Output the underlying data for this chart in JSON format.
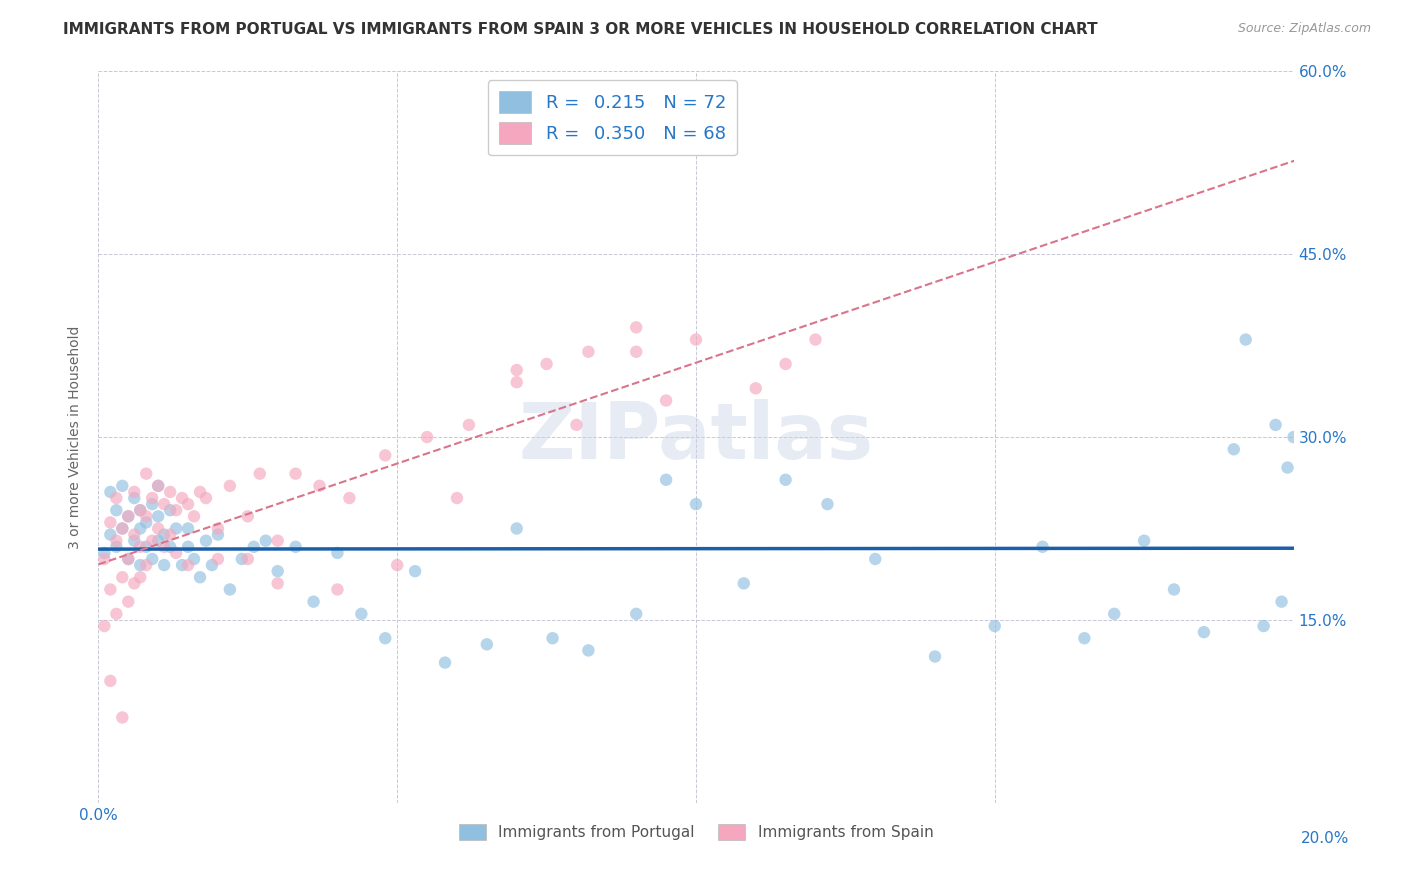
{
  "title": "IMMIGRANTS FROM PORTUGAL VS IMMIGRANTS FROM SPAIN 3 OR MORE VEHICLES IN HOUSEHOLD CORRELATION CHART",
  "source": "Source: ZipAtlas.com",
  "ylabel": "3 or more Vehicles in Household",
  "legend_portugal": "Immigrants from Portugal",
  "legend_spain": "Immigrants from Spain",
  "r_portugal": 0.215,
  "n_portugal": 72,
  "r_spain": 0.35,
  "n_spain": 68,
  "color_portugal": "#90bfdf",
  "color_spain": "#f4a7be",
  "trendline_portugal_color": "#1a5fa8",
  "trendline_spain_color": "#d9748a",
  "xlim": [
    0.0,
    0.2
  ],
  "ylim": [
    0.0,
    0.6
  ],
  "xticks": [
    0.0,
    0.05,
    0.1,
    0.15,
    0.2
  ],
  "yticks": [
    0.0,
    0.15,
    0.3,
    0.45,
    0.6
  ],
  "yticklabels_right": [
    "",
    "15.0%",
    "30.0%",
    "45.0%",
    "60.0%"
  ],
  "portugal_x": [
    0.001,
    0.002,
    0.002,
    0.003,
    0.003,
    0.004,
    0.004,
    0.005,
    0.005,
    0.006,
    0.006,
    0.007,
    0.007,
    0.007,
    0.008,
    0.008,
    0.009,
    0.009,
    0.01,
    0.01,
    0.01,
    0.011,
    0.011,
    0.012,
    0.012,
    0.013,
    0.014,
    0.015,
    0.015,
    0.016,
    0.017,
    0.018,
    0.019,
    0.02,
    0.022,
    0.024,
    0.026,
    0.028,
    0.03,
    0.033,
    0.036,
    0.04,
    0.044,
    0.048,
    0.053,
    0.058,
    0.065,
    0.07,
    0.076,
    0.082,
    0.09,
    0.095,
    0.1,
    0.108,
    0.115,
    0.122,
    0.13,
    0.14,
    0.15,
    0.158,
    0.165,
    0.17,
    0.175,
    0.18,
    0.185,
    0.19,
    0.192,
    0.195,
    0.197,
    0.198,
    0.199,
    0.2
  ],
  "portugal_y": [
    0.205,
    0.22,
    0.255,
    0.21,
    0.24,
    0.225,
    0.26,
    0.2,
    0.235,
    0.215,
    0.25,
    0.225,
    0.195,
    0.24,
    0.21,
    0.23,
    0.2,
    0.245,
    0.215,
    0.235,
    0.26,
    0.22,
    0.195,
    0.24,
    0.21,
    0.225,
    0.195,
    0.21,
    0.225,
    0.2,
    0.185,
    0.215,
    0.195,
    0.22,
    0.175,
    0.2,
    0.21,
    0.215,
    0.19,
    0.21,
    0.165,
    0.205,
    0.155,
    0.135,
    0.19,
    0.115,
    0.13,
    0.225,
    0.135,
    0.125,
    0.155,
    0.265,
    0.245,
    0.18,
    0.265,
    0.245,
    0.2,
    0.12,
    0.145,
    0.21,
    0.135,
    0.155,
    0.215,
    0.175,
    0.14,
    0.29,
    0.38,
    0.145,
    0.31,
    0.165,
    0.275,
    0.3
  ],
  "spain_x": [
    0.001,
    0.001,
    0.002,
    0.002,
    0.002,
    0.003,
    0.003,
    0.003,
    0.004,
    0.004,
    0.004,
    0.005,
    0.005,
    0.005,
    0.006,
    0.006,
    0.006,
    0.007,
    0.007,
    0.007,
    0.008,
    0.008,
    0.008,
    0.009,
    0.009,
    0.01,
    0.01,
    0.011,
    0.011,
    0.012,
    0.012,
    0.013,
    0.013,
    0.014,
    0.015,
    0.016,
    0.017,
    0.018,
    0.02,
    0.022,
    0.025,
    0.027,
    0.03,
    0.033,
    0.037,
    0.042,
    0.048,
    0.055,
    0.062,
    0.07,
    0.075,
    0.082,
    0.09,
    0.095,
    0.1,
    0.11,
    0.115,
    0.12,
    0.025,
    0.03,
    0.04,
    0.05,
    0.06,
    0.07,
    0.08,
    0.09,
    0.02,
    0.015
  ],
  "spain_y": [
    0.2,
    0.145,
    0.23,
    0.175,
    0.1,
    0.25,
    0.215,
    0.155,
    0.225,
    0.185,
    0.07,
    0.235,
    0.2,
    0.165,
    0.255,
    0.22,
    0.18,
    0.24,
    0.21,
    0.185,
    0.27,
    0.235,
    0.195,
    0.25,
    0.215,
    0.26,
    0.225,
    0.245,
    0.21,
    0.255,
    0.22,
    0.24,
    0.205,
    0.25,
    0.245,
    0.235,
    0.255,
    0.25,
    0.225,
    0.26,
    0.235,
    0.27,
    0.215,
    0.27,
    0.26,
    0.25,
    0.285,
    0.3,
    0.31,
    0.355,
    0.36,
    0.37,
    0.39,
    0.33,
    0.38,
    0.34,
    0.36,
    0.38,
    0.2,
    0.18,
    0.175,
    0.195,
    0.25,
    0.345,
    0.31,
    0.37,
    0.2,
    0.195
  ],
  "watermark_text": "ZIPatlas",
  "background_color": "#ffffff",
  "grid_color": "#cccccc",
  "title_fontsize": 11,
  "label_fontsize": 10,
  "tick_fontsize": 11,
  "source_fontsize": 9,
  "scatter_size": 80,
  "scatter_alpha": 0.65,
  "trendline_portugal_lw": 2.5,
  "trendline_spain_lw": 1.5
}
